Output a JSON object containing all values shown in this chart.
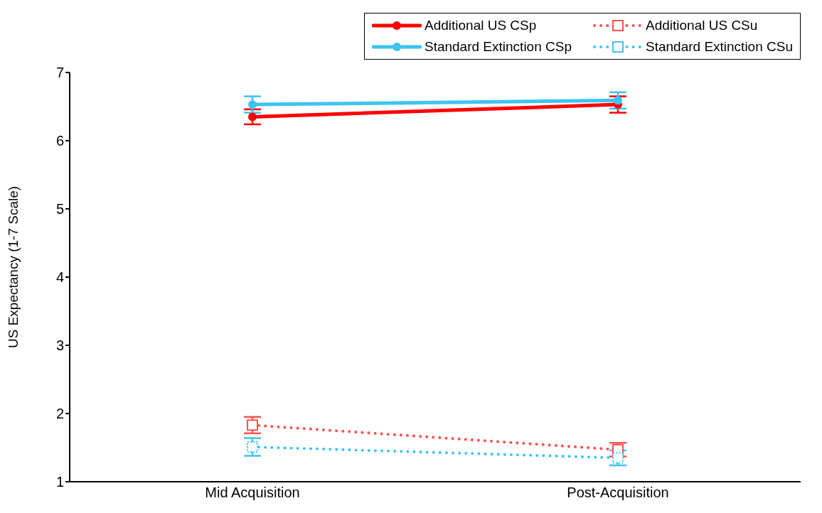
{
  "chart_data": {
    "type": "line",
    "ylabel": "US Expectancy (1-7 Scale)",
    "categories": [
      "Mid Acquisition",
      "Post-Acquisition"
    ],
    "ylim": [
      1,
      7
    ],
    "yticks": [
      1,
      2,
      3,
      4,
      5,
      6,
      7
    ],
    "grid": false,
    "legend": "top right",
    "series": [
      {
        "name": "Additional US CSp",
        "color": "#ff0000",
        "values": [
          6.35,
          6.53
        ],
        "errors": [
          0.11,
          0.12
        ],
        "marker": "circle",
        "line_style": "solid"
      },
      {
        "name": "Additional US CSu",
        "color": "#ff5050",
        "values": [
          1.83,
          1.47
        ],
        "errors": [
          0.12,
          0.1
        ],
        "marker": "square",
        "line_style": "dotted"
      },
      {
        "name": "Standard Extinction CSp",
        "color": "#3ec4f0",
        "values": [
          6.53,
          6.59
        ],
        "errors": [
          0.12,
          0.12
        ],
        "marker": "circle",
        "line_style": "solid"
      },
      {
        "name": "Standard Extinction CSu",
        "color": "#3ec4f0",
        "values": [
          1.51,
          1.35
        ],
        "errors": [
          0.13,
          0.11
        ],
        "marker": "square",
        "line_style": "dotted"
      }
    ]
  }
}
